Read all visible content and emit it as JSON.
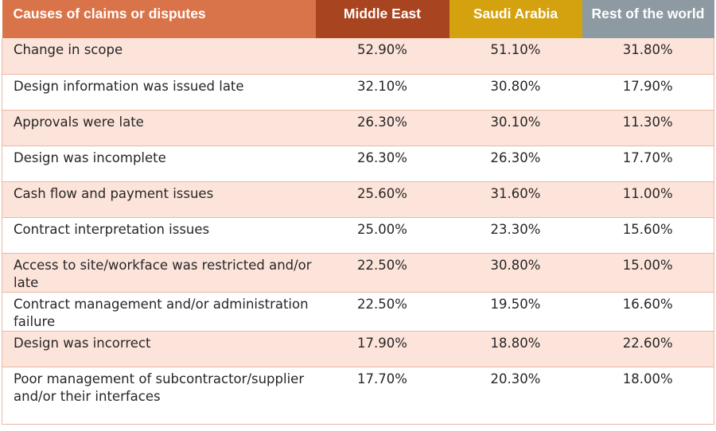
{
  "table": {
    "headers": {
      "cause": "Causes of claims or disputes",
      "middle_east": "Middle East",
      "saudi_arabia": "Saudi Arabia",
      "rest_of_world": "Rest of the world"
    },
    "header_colors": {
      "cause": "#d9744a",
      "middle_east": "#a8441f",
      "saudi_arabia": "#d3a20e",
      "rest_of_world": "#8e9aa2"
    },
    "row_colors": {
      "shaded": "#fde4db",
      "plain": "#ffffff"
    },
    "rows": [
      {
        "cause": "Change in scope",
        "middle_east": "52.90%",
        "saudi_arabia": "51.10%",
        "rest_of_world": "31.80%"
      },
      {
        "cause": "Design information was issued late",
        "middle_east": "32.10%",
        "saudi_arabia": "30.80%",
        "rest_of_world": "17.90%"
      },
      {
        "cause": "Approvals were late",
        "middle_east": "26.30%",
        "saudi_arabia": "30.10%",
        "rest_of_world": "11.30%"
      },
      {
        "cause": "Design was incomplete",
        "middle_east": "26.30%",
        "saudi_arabia": "26.30%",
        "rest_of_world": "17.70%"
      },
      {
        "cause": "Cash flow and payment issues",
        "middle_east": "25.60%",
        "saudi_arabia": "31.60%",
        "rest_of_world": "11.00%"
      },
      {
        "cause": "Contract interpretation issues",
        "middle_east": "25.00%",
        "saudi_arabia": "23.30%",
        "rest_of_world": "15.60%"
      },
      {
        "cause": "Access to site/workface was restricted and/or late",
        "middle_east": "22.50%",
        "saudi_arabia": "30.80%",
        "rest_of_world": "15.00%"
      },
      {
        "cause": "Contract management and/or administration failure",
        "middle_east": "22.50%",
        "saudi_arabia": "19.50%",
        "rest_of_world": "16.60%"
      },
      {
        "cause": "Design was incorrect",
        "middle_east": "17.90%",
        "saudi_arabia": "18.80%",
        "rest_of_world": "22.60%"
      },
      {
        "cause": "Poor management of subcontractor/supplier and/or their interfaces",
        "middle_east": "17.70%",
        "saudi_arabia": "20.30%",
        "rest_of_world": "18.00%"
      }
    ]
  }
}
